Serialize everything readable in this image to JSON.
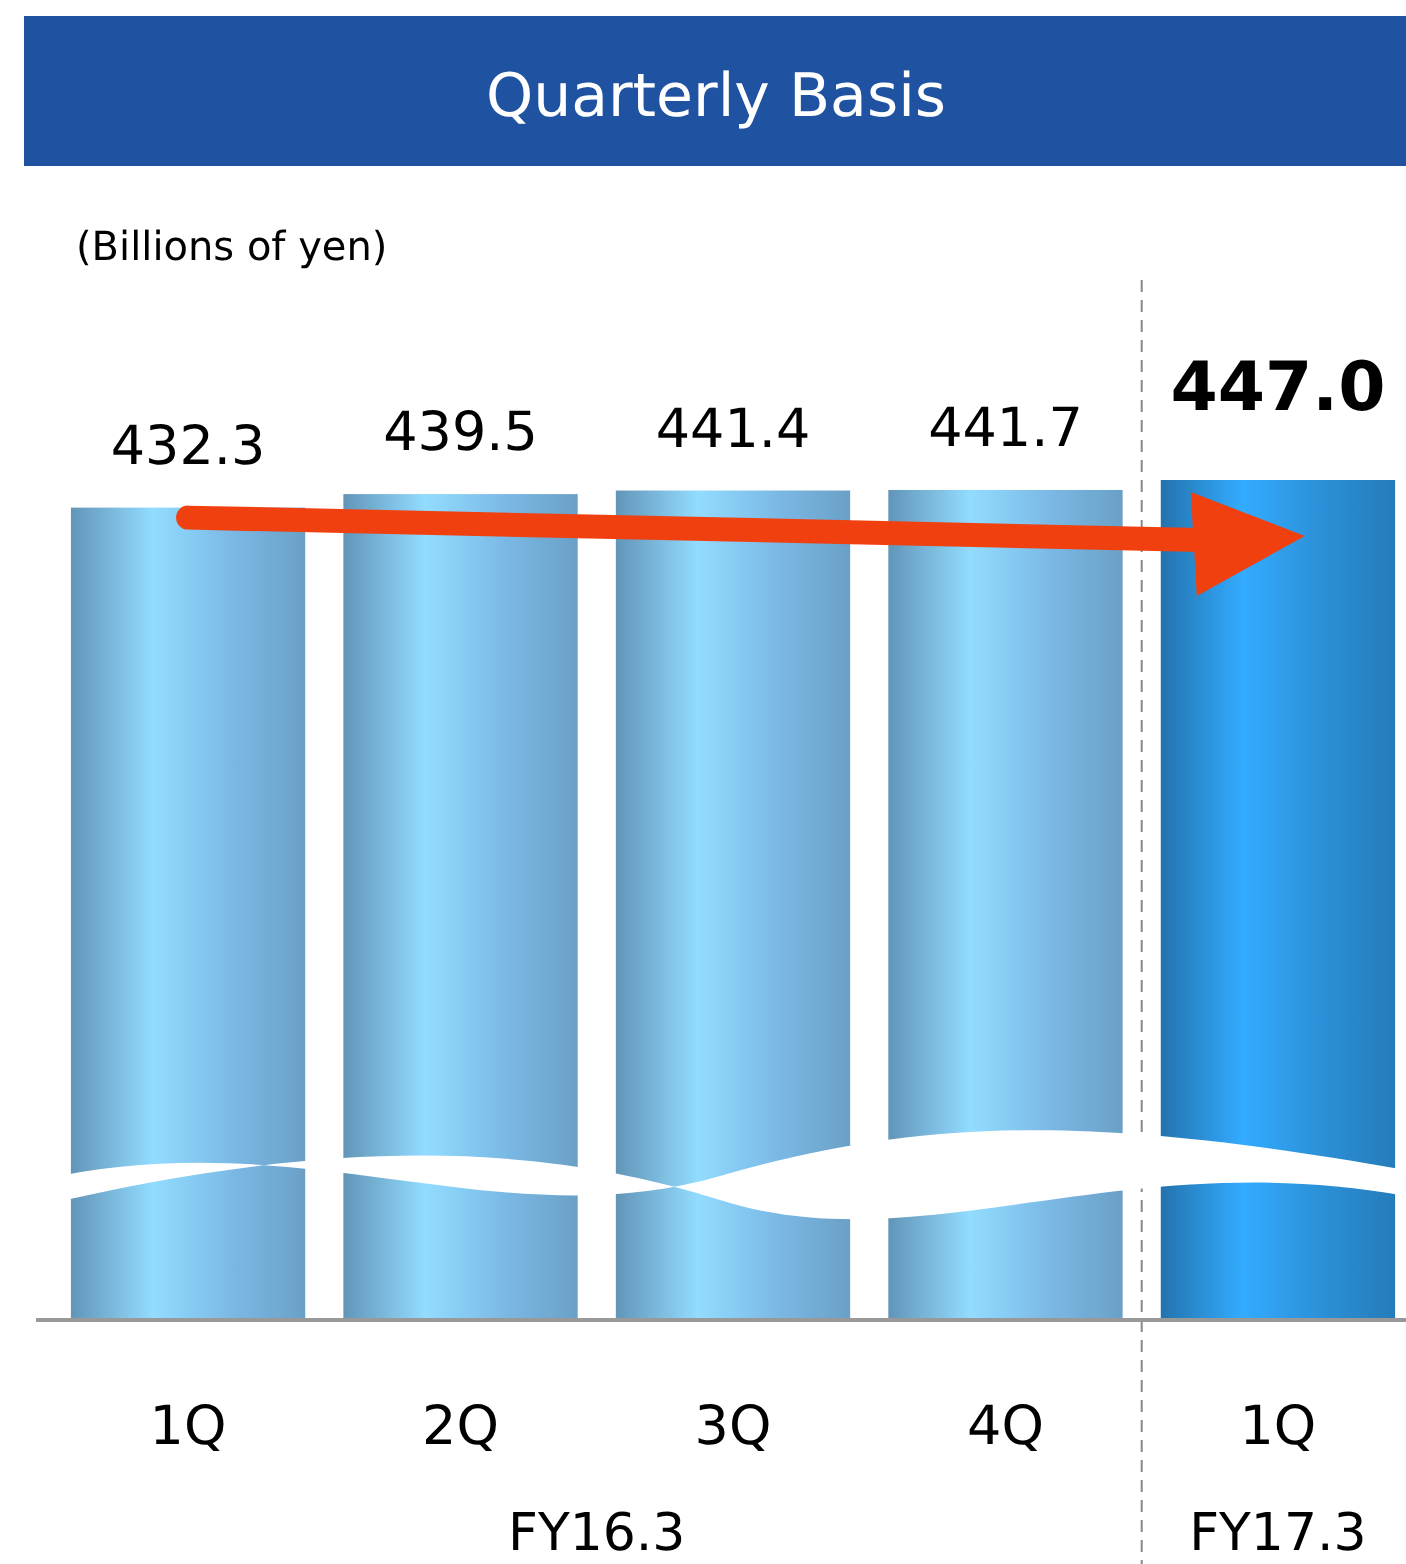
{
  "chart_data": {
    "type": "bar",
    "title": "Quarterly Basis",
    "categories": [
      "1Q",
      "2Q",
      "3Q",
      "4Q",
      "1Q"
    ],
    "values": [
      432.3,
      439.5,
      441.4,
      441.7,
      447.0
    ],
    "colors": [
      "#7ab8e4",
      "#7ab8e4",
      "#7ab8e4",
      "#7ab8e4",
      "#2b8fd6"
    ],
    "value_labels": [
      "432.3",
      "439.5",
      "441.4",
      "441.7",
      "447.0"
    ],
    "annotations": [
      "(Billions of yen)",
      "FY16.3",
      "FY17.3"
    ]
  }
}
